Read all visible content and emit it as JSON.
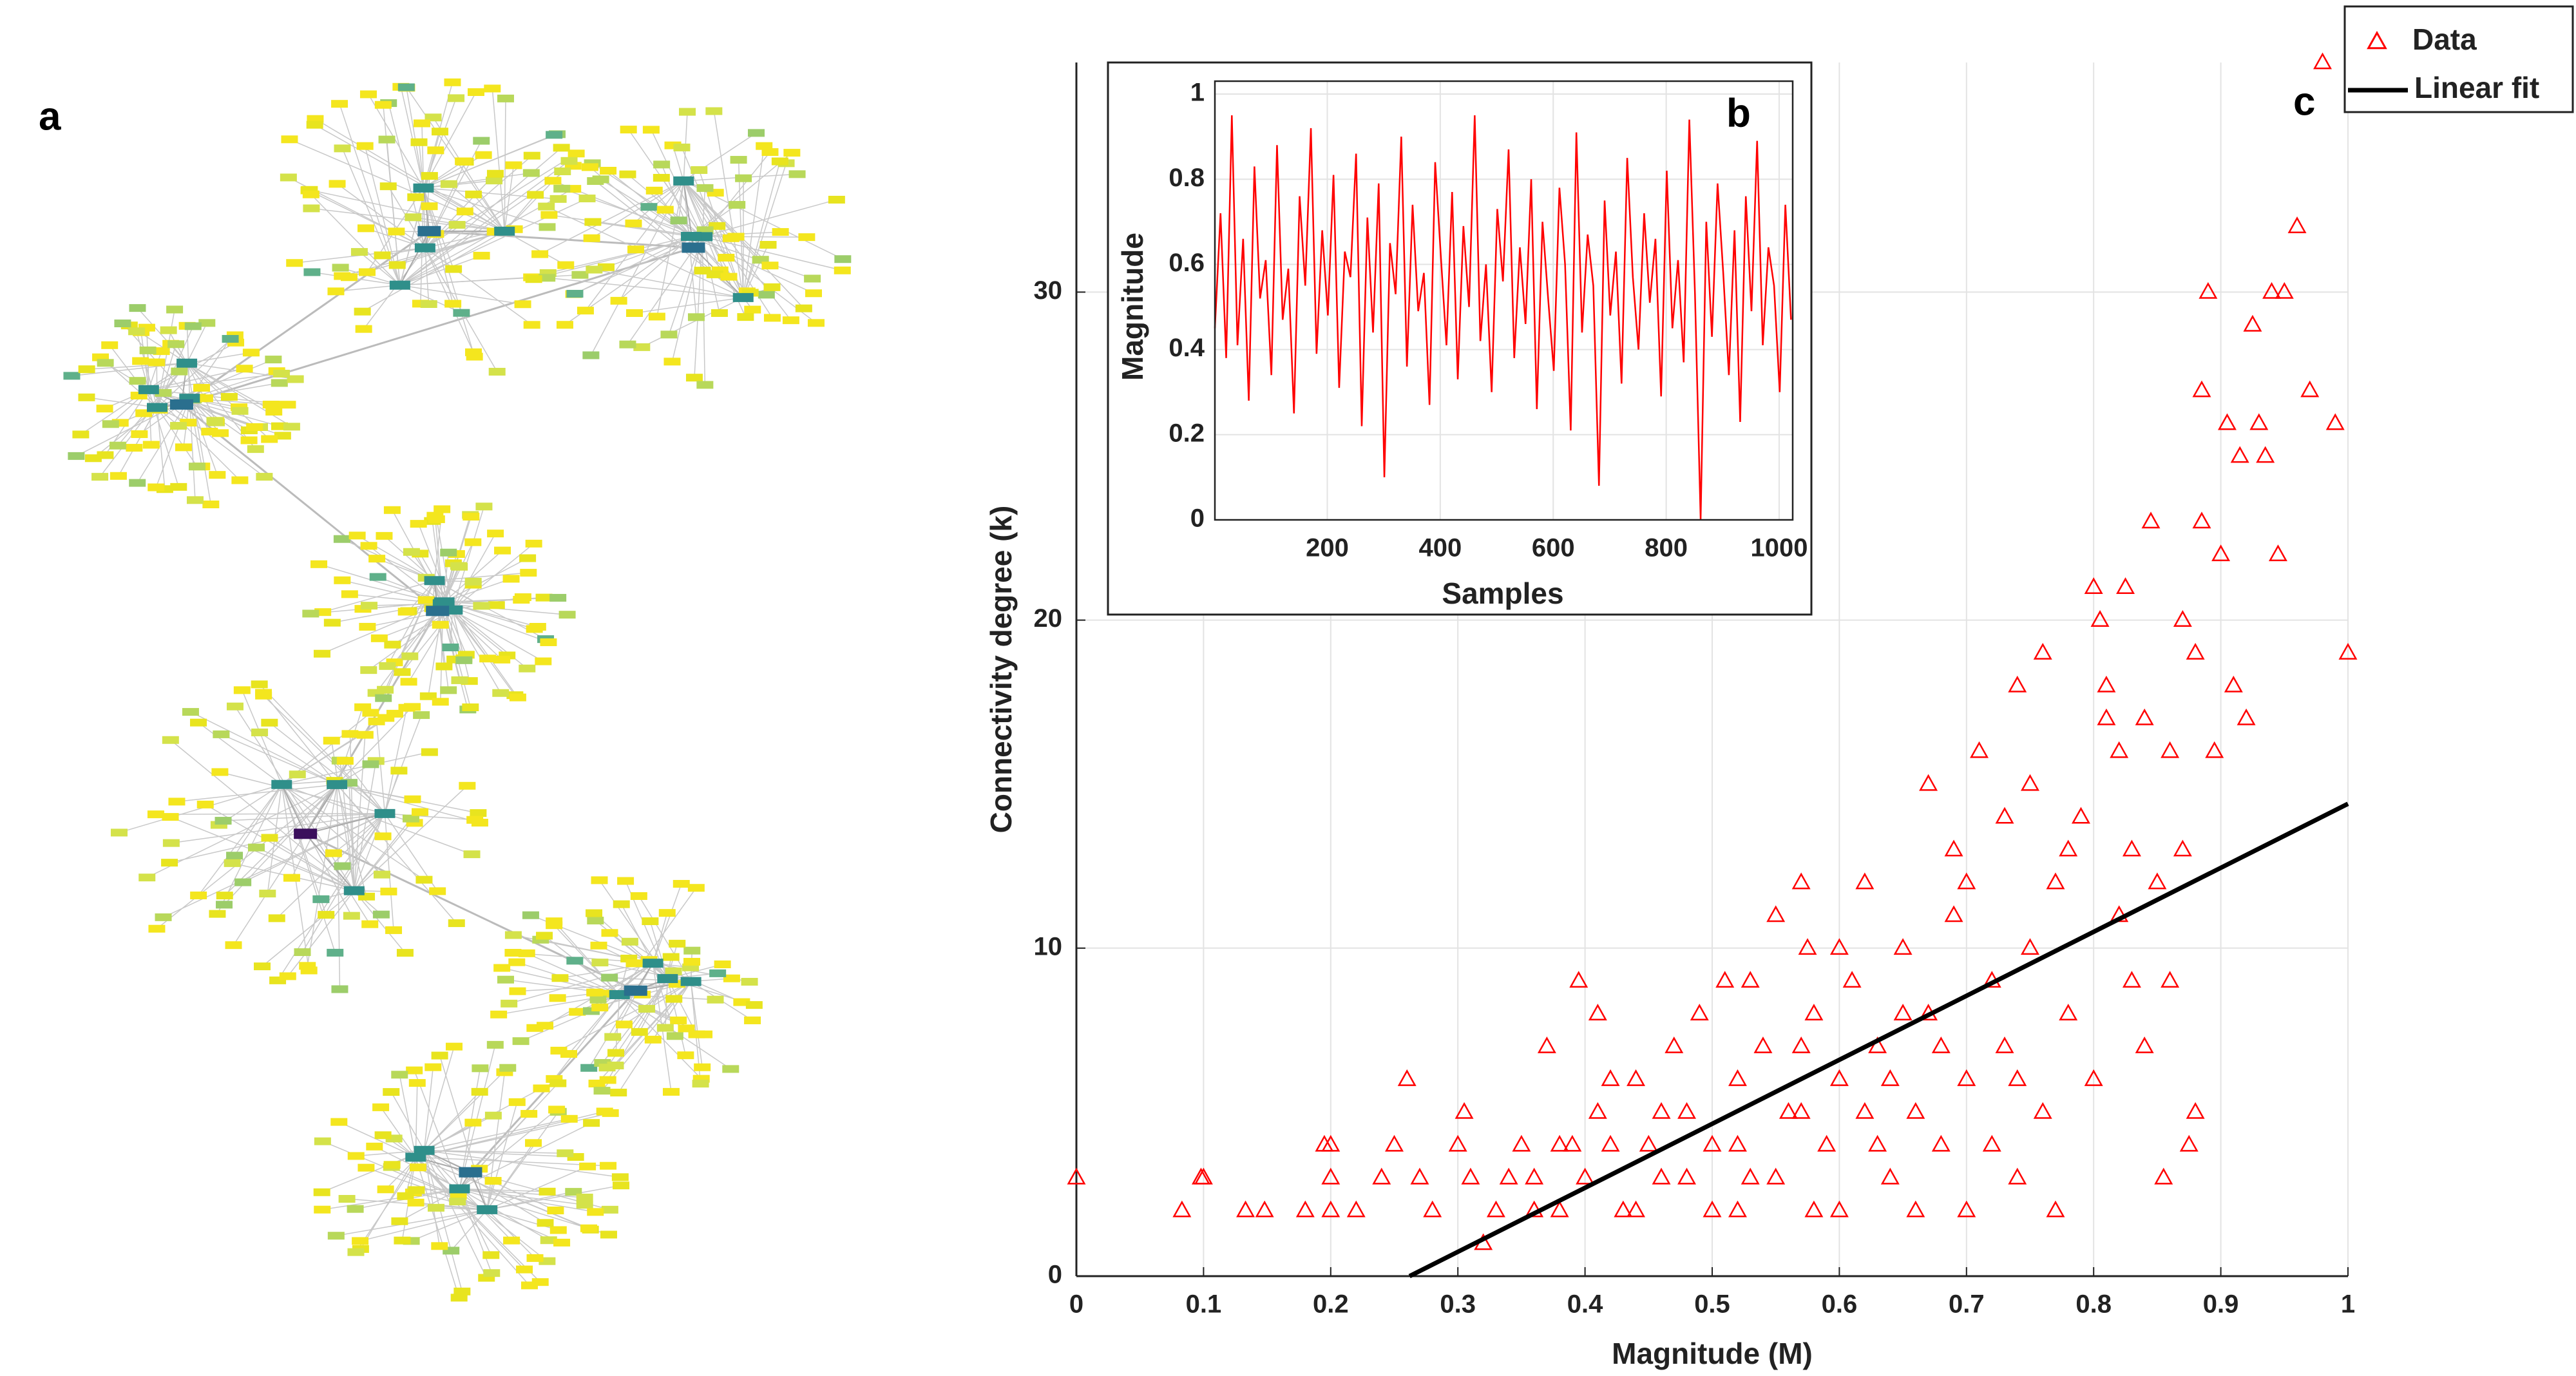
{
  "network": {
    "panel_label": "a"
  },
  "chart_data": [
    {
      "type": "scatter",
      "panel_label": "c",
      "xlabel": "Magnitude (M)",
      "ylabel": "Connectivity degree (k)",
      "xlim": [
        0,
        1
      ],
      "ylim": [
        0,
        37
      ],
      "xticks": [
        0,
        0.1,
        0.2,
        0.3,
        0.4,
        0.5,
        0.6,
        0.7,
        0.8,
        0.9,
        1
      ],
      "yticks": [
        0,
        10,
        20,
        30
      ],
      "grid": true,
      "legend": "upper right",
      "series": [
        {
          "name": "Data",
          "color": "#ff0000",
          "marker": "triangle",
          "x": [
            0,
            0.083,
            0.098,
            0.1,
            0.133,
            0.148,
            0.18,
            0.195,
            0.2,
            0.2,
            0.2,
            0.22,
            0.24,
            0.25,
            0.26,
            0.27,
            0.28,
            0.3,
            0.305,
            0.31,
            0.32,
            0.33,
            0.35,
            0.36,
            0.37,
            0.38,
            0.39,
            0.395,
            0.4,
            0.41,
            0.41,
            0.42,
            0.43,
            0.44,
            0.45,
            0.46,
            0.47,
            0.48,
            0.49,
            0.5,
            0.5,
            0.51,
            0.52,
            0.53,
            0.54,
            0.55,
            0.56,
            0.57,
            0.575,
            0.58,
            0.59,
            0.6,
            0.6,
            0.61,
            0.62,
            0.63,
            0.64,
            0.65,
            0.66,
            0.67,
            0.67,
            0.68,
            0.69,
            0.69,
            0.7,
            0.7,
            0.71,
            0.72,
            0.73,
            0.73,
            0.74,
            0.74,
            0.75,
            0.76,
            0.76,
            0.77,
            0.77,
            0.78,
            0.79,
            0.8,
            0.8,
            0.805,
            0.81,
            0.81,
            0.82,
            0.82,
            0.825,
            0.83,
            0.83,
            0.84,
            0.845,
            0.85,
            0.855,
            0.86,
            0.87,
            0.87,
            0.875,
            0.88,
            0.885,
            0.885,
            0.89,
            0.895,
            0.9,
            0.905,
            0.91,
            0.915,
            0.92,
            0.925,
            0.93,
            0.935,
            0.94,
            0.945,
            0.95,
            0.96,
            0.97,
            0.98,
            0.99,
            1,
            0.44,
            0.46,
            0.52,
            0.55,
            0.58,
            0.62,
            0.64,
            0.66,
            0.68,
            0.72,
            0.74,
            0.53,
            0.57,
            0.6,
            0.63,
            0.48,
            0.42,
            0.38,
            0.34,
            0.65,
            0.7,
            0.75,
            0.86,
            0.88,
            0.78,
            0.84,
            0.36,
            0.52,
            0.57
          ],
          "values": [
            3,
            2,
            3,
            3,
            2,
            2,
            2,
            4,
            4,
            3,
            2,
            2,
            3,
            4,
            6,
            3,
            2,
            4,
            5,
            3,
            1,
            2,
            4,
            3,
            7,
            2,
            4,
            9,
            3,
            5,
            8,
            4,
            2,
            6,
            4,
            3,
            7,
            5,
            8,
            4,
            2,
            9,
            6,
            3,
            7,
            11,
            5,
            12,
            10,
            8,
            4,
            6,
            2,
            9,
            12,
            7,
            3,
            10,
            5,
            15,
            8,
            4,
            11,
            13,
            6,
            2,
            16,
            9,
            14,
            7,
            18,
            3,
            10,
            19,
            5,
            12,
            2,
            8,
            14,
            21,
            6,
            20,
            18,
            17,
            16,
            11,
            21,
            13,
            9,
            17,
            23,
            12,
            3,
            16,
            20,
            13,
            4,
            19,
            27,
            23,
            30,
            16,
            22,
            26,
            18,
            25,
            17,
            29,
            26,
            25,
            30,
            22,
            30,
            32,
            27,
            37,
            26,
            19,
            2,
            5,
            4,
            3,
            2,
            5,
            6,
            2,
            7,
            4,
            6,
            9,
            7,
            10,
            4,
            3,
            6,
            4,
            3,
            8,
            12,
            15,
            9,
            5,
            13,
            7,
            2,
            2,
            5
          ]
        },
        {
          "name": "Linear fit",
          "color": "#000000",
          "x": [
            0.262,
            1
          ],
          "values": [
            0,
            14.4
          ]
        }
      ]
    },
    {
      "type": "line",
      "panel_label": "b",
      "xlabel": "Samples",
      "ylabel": "Magnitude",
      "xlim": [
        1,
        1024
      ],
      "ylim": [
        0,
        1
      ],
      "xticks": [
        200,
        400,
        600,
        800,
        1000
      ],
      "yticks": [
        0,
        0.2,
        0.4,
        0.6,
        0.8,
        1
      ],
      "grid": true,
      "series": [
        {
          "color": "#ff0000",
          "x": [
            1,
            11,
            21,
            31,
            41,
            51,
            61,
            71,
            81,
            91,
            101,
            111,
            121,
            131,
            141,
            151,
            161,
            171,
            181,
            191,
            201,
            211,
            221,
            231,
            241,
            251,
            261,
            271,
            281,
            291,
            301,
            311,
            321,
            331,
            341,
            351,
            361,
            371,
            381,
            391,
            401,
            411,
            421,
            431,
            441,
            451,
            461,
            471,
            481,
            491,
            501,
            511,
            521,
            531,
            541,
            551,
            561,
            571,
            581,
            591,
            601,
            611,
            621,
            631,
            641,
            651,
            661,
            671,
            681,
            691,
            701,
            711,
            721,
            731,
            741,
            751,
            761,
            771,
            781,
            791,
            801,
            811,
            821,
            831,
            841,
            851,
            861,
            871,
            881,
            891,
            901,
            911,
            921,
            931,
            941,
            951,
            961,
            971,
            981,
            991,
            1001,
            1011,
            1021
          ],
          "values": [
            0.45,
            0.72,
            0.38,
            0.95,
            0.41,
            0.66,
            0.28,
            0.83,
            0.52,
            0.61,
            0.34,
            0.88,
            0.47,
            0.59,
            0.25,
            0.76,
            0.55,
            0.92,
            0.39,
            0.68,
            0.48,
            0.81,
            0.31,
            0.63,
            0.57,
            0.86,
            0.22,
            0.71,
            0.44,
            0.79,
            0.1,
            0.65,
            0.53,
            0.9,
            0.36,
            0.74,
            0.49,
            0.58,
            0.27,
            0.84,
            0.62,
            0.41,
            0.77,
            0.33,
            0.69,
            0.5,
            0.95,
            0.42,
            0.6,
            0.3,
            0.73,
            0.56,
            0.87,
            0.38,
            0.64,
            0.46,
            0.8,
            0.26,
            0.7,
            0.52,
            0.35,
            0.78,
            0.6,
            0.21,
            0.91,
            0.44,
            0.67,
            0.55,
            0.08,
            0.75,
            0.48,
            0.63,
            0.32,
            0.85,
            0.57,
            0.4,
            0.72,
            0.51,
            0.66,
            0.29,
            0.82,
            0.45,
            0.61,
            0.37,
            0.94,
            0.53,
            0,
            0.7,
            0.43,
            0.79,
            0.58,
            0.34,
            0.68,
            0.23,
            0.76,
            0.49,
            0.89,
            0.41,
            0.64,
            0.55,
            0.3,
            0.74,
            0.47
          ]
        }
      ]
    }
  ]
}
